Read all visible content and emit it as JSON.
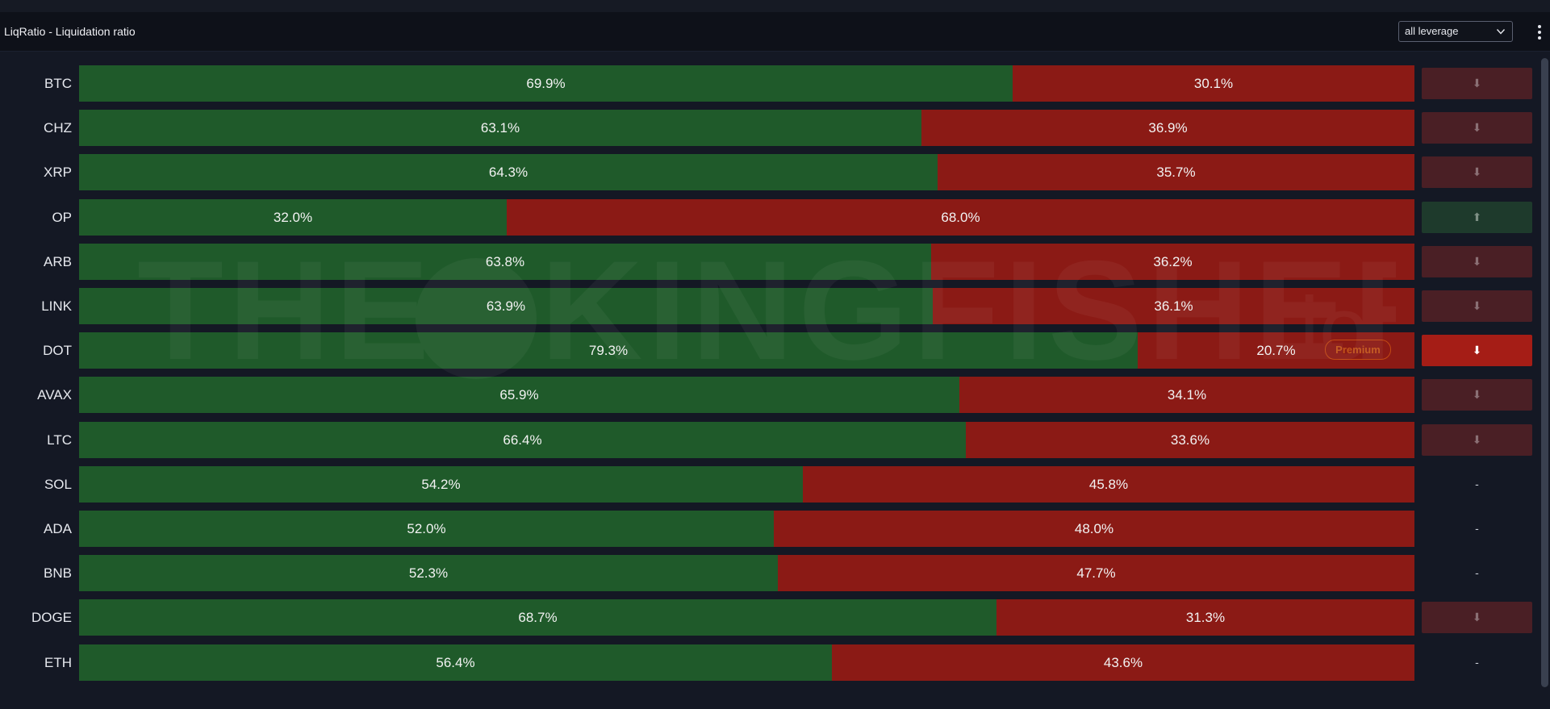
{
  "header": {
    "title": "LiqRatio - Liquidation ratio",
    "leverage_select": {
      "value": "all leverage",
      "icon": "chevron-down-icon"
    },
    "menu_icon": "kebab-menu-icon"
  },
  "watermark": {
    "brand": "THE KINGFISHER",
    "suffix": ".io"
  },
  "colors": {
    "long": "#1f5a2a",
    "short": "#8b1a15",
    "premium": "#c2541a",
    "indicator_down_dim": "#4a1f25",
    "indicator_up_dim": "#1e3a2c",
    "indicator_down_strong": "#a51d16"
  },
  "premium_label": "Premium",
  "rows": [
    {
      "symbol": "BTC",
      "long_pct": 69.9,
      "short_pct": 30.1,
      "long_label": "69.9%",
      "short_label": "30.1%",
      "indicator": "⬇",
      "indicator_type": "down-dim"
    },
    {
      "symbol": "CHZ",
      "long_pct": 63.1,
      "short_pct": 36.9,
      "long_label": "63.1%",
      "short_label": "36.9%",
      "indicator": "⬇",
      "indicator_type": "down-dim"
    },
    {
      "symbol": "XRP",
      "long_pct": 64.3,
      "short_pct": 35.7,
      "long_label": "64.3%",
      "short_label": "35.7%",
      "indicator": "⬇",
      "indicator_type": "down-dim"
    },
    {
      "symbol": "OP",
      "long_pct": 32.0,
      "short_pct": 68.0,
      "long_label": "32.0%",
      "short_label": "68.0%",
      "indicator": "⬆",
      "indicator_type": "up-dim"
    },
    {
      "symbol": "ARB",
      "long_pct": 63.8,
      "short_pct": 36.2,
      "long_label": "63.8%",
      "short_label": "36.2%",
      "indicator": "⬇",
      "indicator_type": "down-dim"
    },
    {
      "symbol": "LINK",
      "long_pct": 63.9,
      "short_pct": 36.1,
      "long_label": "63.9%",
      "short_label": "36.1%",
      "indicator": "⬇",
      "indicator_type": "down-dim"
    },
    {
      "symbol": "DOT",
      "long_pct": 79.3,
      "short_pct": 20.7,
      "long_label": "79.3%",
      "short_label": "20.7%",
      "indicator": "⬇",
      "indicator_type": "down-strong",
      "premium": true
    },
    {
      "symbol": "AVAX",
      "long_pct": 65.9,
      "short_pct": 34.1,
      "long_label": "65.9%",
      "short_label": "34.1%",
      "indicator": "⬇",
      "indicator_type": "down-dim"
    },
    {
      "symbol": "LTC",
      "long_pct": 66.4,
      "short_pct": 33.6,
      "long_label": "66.4%",
      "short_label": "33.6%",
      "indicator": "⬇",
      "indicator_type": "down-dim"
    },
    {
      "symbol": "SOL",
      "long_pct": 54.2,
      "short_pct": 45.8,
      "long_label": "54.2%",
      "short_label": "45.8%",
      "indicator": "-",
      "indicator_type": "none"
    },
    {
      "symbol": "ADA",
      "long_pct": 52.0,
      "short_pct": 48.0,
      "long_label": "52.0%",
      "short_label": "48.0%",
      "indicator": "-",
      "indicator_type": "none"
    },
    {
      "symbol": "BNB",
      "long_pct": 52.3,
      "short_pct": 47.7,
      "long_label": "52.3%",
      "short_label": "47.7%",
      "indicator": "-",
      "indicator_type": "none"
    },
    {
      "symbol": "DOGE",
      "long_pct": 68.7,
      "short_pct": 31.3,
      "long_label": "68.7%",
      "short_label": "31.3%",
      "indicator": "⬇",
      "indicator_type": "down-dim"
    },
    {
      "symbol": "ETH",
      "long_pct": 56.4,
      "short_pct": 43.6,
      "long_label": "56.4%",
      "short_label": "43.6%",
      "indicator": "-",
      "indicator_type": "none"
    }
  ]
}
